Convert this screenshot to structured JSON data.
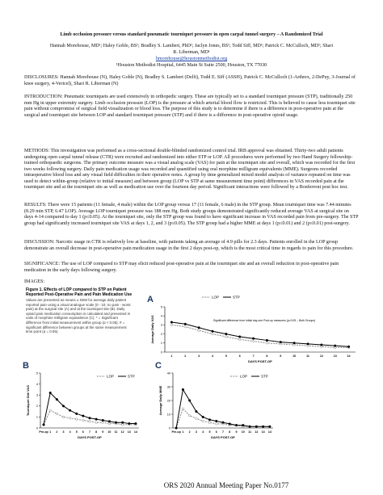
{
  "header": {
    "title": "Limb occlusion pressure versus standard pneumatic tourniquet pressure in open carpal tunnel surgery – A Randomized Trial",
    "authors": "Hannah Morehouse, MD¹; Haley Goble, BS¹; Bradley S. Lambert, PhD¹; Jaclyn Jones, BS¹; Todd Siff, MD¹; Patrick C. McCulloch, MD¹; Shari R. Liberman, MD¹",
    "email": "hmorehouse@houstonmethodist.org",
    "affiliation": "¹Houston Methodist Hospital, 6445 Main St Suite 2500, Houston, TX 77030"
  },
  "sections": [
    "DISCLOSURES:  Hannah Morehouse (N), Haley Goble (N), Bradley S. Lambert (Delfi), Todd E. Siff (ASSH), Patrick C. McCulloch (1-Arthrex, 2-DePuy, 3-Journal of knee surgery, 4-Vericel), Shari R. Liberman (N)",
    "INTRODUCTION: Pneumatic tourniquets are used extensively in orthopedic surgery. These are typically set to a standard tourniquet pressure (STP), traditionally 250 mm Hg in upper extremity surgery. Limb occlusion pressure (LOP) is the pressure at which arterial blood flow is restricted. This is believed to cause less tourniquet site pain without compromise of surgical field visualization or blood loss. The purpose of this study is to determine if there is a difference in post-operative pain at the surgical and tourniquet site between LOP and standard tourniquet pressure (STP) and if there is a difference in post-operative opioid usage.",
    "METHODS: This investigation was performed as a cross-sectional double-blinded randomized control trial. IRB approval was obtained. Thirty-two adult patients undergoing open carpal tunnel release (CTR) were recruited and randomized into either STP or LOP. All procedures were performed by two Hand Surgery fellowship-trained orthopaedic surgeons. The primary outcome measure was a visual analog scale (VAS) for pain at the tourniquet site and overall, which was recorded for the first two weeks following surgery. Daily pain medication usage was recorded and quantified using oral morphine milligram equivalents (MME). Surgeons recorded intraoperative blood loss and any visual field difficulties in their operative notes. A group by time generalized mixed model analysis of variance repeated on time was used to detect within-group (relative to initial measure) and between group (LOP vs STP at same measurement time point) differences in VAS recorded pain at the tourniquet site and at the tourniquet site as well as medication use over the fourteen day period. Significant interactions were followed by a Bonferroni post hoc test.",
    "RESULTS: There were 15 patients (11 female, 4 male) within the LOP group versus 17 (11 female, 6 male) in the STP group. Mean tourniquet time was 7.44 minutes (8.29 min STP, 6.47 LOP). Average LOP tourniquet pressure was 188 mm Hg. Both study groups demonstrated significantly reduced average VAS at surgical site on days 4-14 compared to day 1 (p≤0.05). At the tourniquet site, only the STP group was found to have significant increase in VAS recorded pain from pre-surgery. The STP group had significantly increased tourniquet site VAS at days 1, 2, and 3 (p≤0.05). The STP group had a higher MME at days 1 (p≤0.01) and 2 (p≤0.01) post-surgery.",
    "DISCUSSION: Narcotic usage in CTR is relatively low at baseline, with patients taking an average of 4.9 pills for 2.3 days. Patients enrolled in the LOP group demonstrate an overall decrease in post-operative pain medication usage in the first 2 days post-op, which is the most critical time in regards to pain for this procedure.",
    "SIGNIFICANCE: The use of LOP compared to STP may elicit reduced post-operative pain at the tourniquet site and an overall reduction in post-operative pain medication in the early days following surgery.",
    "IMAGES:"
  ],
  "figure": {
    "title": "Figure 1. Effects of LOP compared to STP on Patient Reported Post-Operative Pain and Pain Medication Use",
    "caption": "Values are presented as means ± SEM for average daily patient reported pain using a visual analogue scale (0 - 10; no pain - worst pain) at the surgical site (A) and at the tourniquet site (B). Daily opioid pain medication consumption is calculated and presented in units of morphine milligram equivalence (C). * = Significant difference from initial measurement within group (α < 0.05). # = significant difference between groups at the same measurement time point (α = 0.05).",
    "panels": [
      {
        "type": "line",
        "label": "A",
        "y_label": "Average Daily VAS",
        "x_label": "DAYS POST-OP",
        "annotation": "Significant difference from Initial day-one Post-op measures (p<0.05 – Both Groups)",
        "categories": [
          "1",
          "2",
          "3",
          "4",
          "5",
          "6",
          "7",
          "8",
          "9",
          "10",
          "11",
          "12",
          "13",
          "14"
        ],
        "ylim": [
          0,
          5
        ],
        "yticks": [
          0,
          1,
          2,
          3,
          4,
          5
        ],
        "series": [
          {
            "name": "LOP",
            "color": "#888888",
            "line_style": "dashed",
            "values": [
              3.0,
              2.8,
              2.4,
              2.0,
              1.7,
              1.4,
              1.2,
              1.0,
              0.9,
              0.8,
              0.7,
              0.6,
              0.5,
              0.5
            ]
          },
          {
            "name": "STP",
            "color": "#000000",
            "line_style": "solid",
            "values": [
              3.3,
              3.1,
              2.7,
              2.3,
              2.0,
              1.7,
              1.5,
              1.3,
              1.1,
              1.0,
              0.9,
              0.8,
              0.7,
              0.6
            ]
          }
        ]
      },
      {
        "type": "line",
        "label": "B",
        "y_label": "Tourniquet Site VAS",
        "x_label": "DAYS POST-OP",
        "categories": [
          "Pre-op",
          "1",
          "2",
          "3",
          "4",
          "5",
          "6",
          "7",
          "8",
          "9",
          "10",
          "11",
          "12",
          "13",
          "14"
        ],
        "ylim": [
          0,
          5
        ],
        "yticks": [
          0,
          1,
          2,
          3,
          4,
          5
        ],
        "series": [
          {
            "name": "LOP",
            "color": "#888888",
            "line_style": "dashed",
            "values": [
              0.3,
              1.6,
              1.3,
              1.0,
              0.9,
              0.8,
              0.7,
              0.6,
              0.5,
              0.5,
              0.4,
              0.4,
              0.3,
              0.3,
              0.3
            ]
          },
          {
            "name": "STP",
            "color": "#000000",
            "line_style": "solid",
            "values": [
              0.3,
              3.2,
              2.6,
              2.0,
              1.6,
              1.3,
              1.1,
              0.9,
              0.8,
              0.7,
              0.6,
              0.5,
              0.5,
              0.4,
              0.4
            ]
          }
        ]
      },
      {
        "type": "line",
        "label": "C",
        "y_label": "Average Daily MME",
        "x_label": "DAYS POST-OP",
        "categories": [
          "Pre-op",
          "1",
          "2",
          "3",
          "4",
          "5",
          "6",
          "7",
          "8",
          "9",
          "10",
          "11",
          "12",
          "13",
          "14"
        ],
        "ylim": [
          0,
          40
        ],
        "yticks": [
          0,
          10,
          20,
          30,
          40
        ],
        "series": [
          {
            "name": "LOP",
            "color": "#888888",
            "line_style": "dashed",
            "values": [
              0,
              14,
              9,
              7,
              5,
              4,
              3,
              3,
              2,
              2,
              1,
              1,
              1,
              1,
              1
            ]
          },
          {
            "name": "STP",
            "color": "#000000",
            "line_style": "solid",
            "values": [
              0,
              28,
              20,
              12,
              8,
              6,
              5,
              4,
              3,
              2,
              2,
              1,
              1,
              1,
              1
            ]
          }
        ]
      }
    ]
  },
  "footer": "ORS 2020 Annual Meeting Paper No.0177"
}
